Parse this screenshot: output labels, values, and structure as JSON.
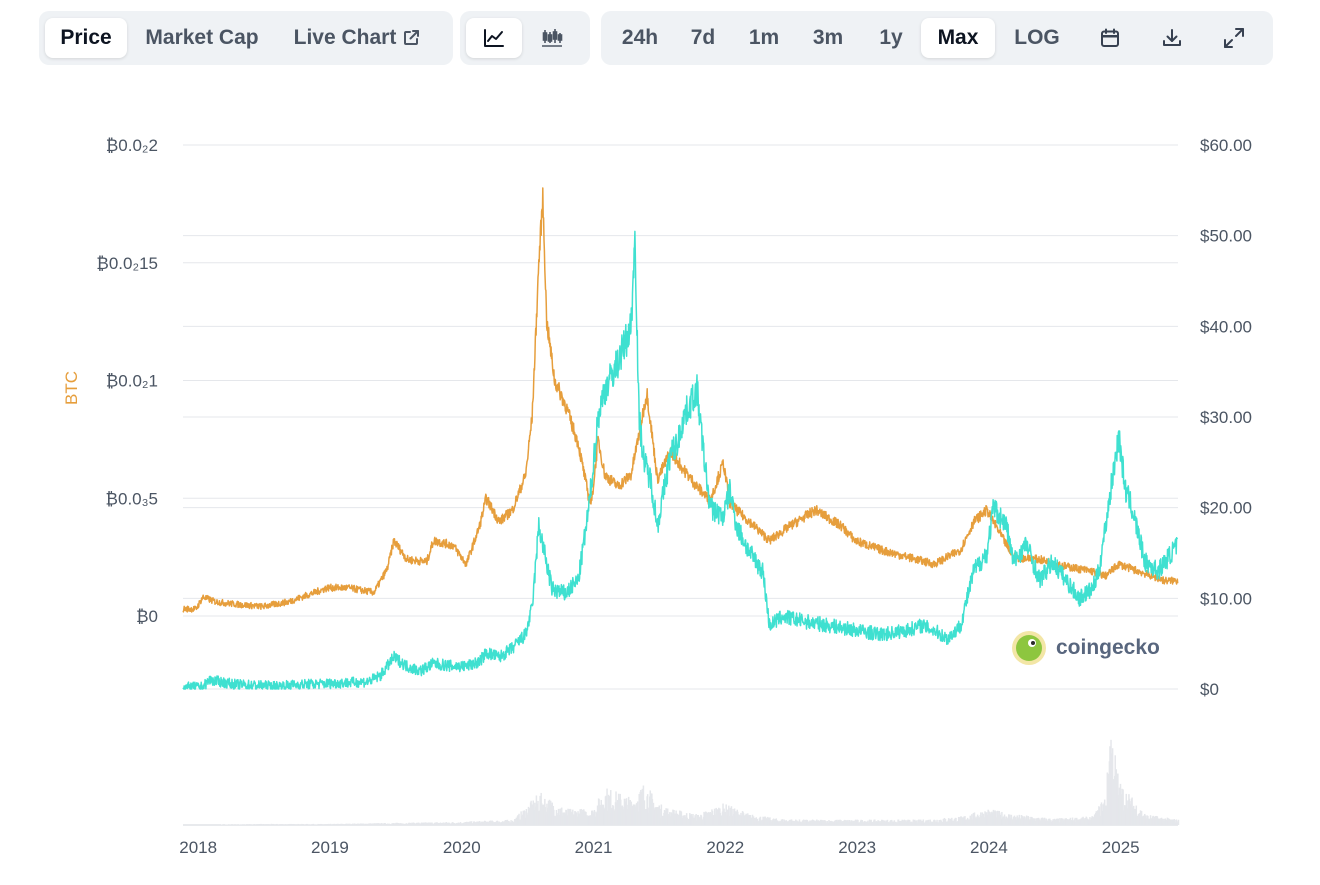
{
  "tabs": {
    "price": "Price",
    "market_cap": "Market Cap",
    "live_chart": "Live Chart"
  },
  "chart_type_buttons": [
    "line-chart-icon",
    "candlestick-chart-icon"
  ],
  "ranges": [
    "24h",
    "7d",
    "1m",
    "3m",
    "1y",
    "Max",
    "LOG"
  ],
  "active_range": "Max",
  "tool_icons": [
    "calendar-icon",
    "download-icon",
    "expand-icon"
  ],
  "watermark": "coingecko",
  "colors": {
    "btc_series": "#e69e3c",
    "usd_series": "#3fe0d0",
    "volume": "#e5e7eb",
    "grid": "#e5e7eb",
    "active_bg": "#ffffff",
    "toolbar_bg": "#eff2f5"
  },
  "chart_data": {
    "type": "line",
    "left_axis": {
      "title": "BTC",
      "ticks": [
        {
          "label": "₿0",
          "value": 0
        },
        {
          "label": "₿0.0₃5",
          "value": 0.0005
        },
        {
          "label": "₿0.0₂1",
          "value": 0.001
        },
        {
          "label": "₿0.0₂15",
          "value": 0.0015
        },
        {
          "label": "₿0.0₂2",
          "value": 0.002
        }
      ],
      "range": [
        0,
        0.002
      ]
    },
    "right_axis": {
      "ticks": [
        "$0",
        "$10.00",
        "$20.00",
        "$30.00",
        "$40.00",
        "$50.00",
        "$60.00"
      ],
      "range": [
        0,
        60
      ]
    },
    "x_axis": {
      "ticks": [
        "2018",
        "2019",
        "2020",
        "2021",
        "2022",
        "2023",
        "2024",
        "2025"
      ],
      "range": [
        2017.9,
        2025.45
      ]
    },
    "series": [
      {
        "axis": "left",
        "x": [
          2017.9,
          2018.0,
          2018.05,
          2018.15,
          2018.3,
          2018.5,
          2018.7,
          2018.85,
          2019.0,
          2019.15,
          2019.35,
          2019.45,
          2019.5,
          2019.6,
          2019.75,
          2019.8,
          2019.95,
          2020.05,
          2020.15,
          2020.2,
          2020.3,
          2020.4,
          2020.5,
          2020.55,
          2020.6,
          2020.63,
          2020.66,
          2020.72,
          2020.8,
          2020.9,
          2020.98,
          2021.0,
          2021.05,
          2021.1,
          2021.2,
          2021.3,
          2021.38,
          2021.42,
          2021.5,
          2021.6,
          2021.7,
          2021.8,
          2021.9,
          2022.0,
          2022.05,
          2022.1,
          2022.2,
          2022.35,
          2022.5,
          2022.7,
          2022.9,
          2023.0,
          2023.2,
          2023.4,
          2023.6,
          2023.8,
          2023.9,
          2024.0,
          2024.1,
          2024.2,
          2024.4,
          2024.6,
          2024.8,
          2024.9,
          2025.0,
          2025.2,
          2025.35,
          2025.45
        ],
        "y": [
          3e-05,
          3e-05,
          8e-05,
          6e-05,
          5e-05,
          4e-05,
          6e-05,
          9e-05,
          0.00012,
          0.00012,
          0.0001,
          0.0002,
          0.00032,
          0.00024,
          0.00023,
          0.00032,
          0.0003,
          0.00022,
          0.00038,
          0.0005,
          0.0004,
          0.00045,
          0.0006,
          0.00085,
          0.0015,
          0.00177,
          0.00125,
          0.001,
          0.0009,
          0.00073,
          0.0005,
          0.00048,
          0.00075,
          0.0006,
          0.00055,
          0.0006,
          0.00083,
          0.00095,
          0.00058,
          0.0007,
          0.00062,
          0.00055,
          0.00049,
          0.00065,
          0.00048,
          0.00045,
          0.0004,
          0.00032,
          0.00038,
          0.00045,
          0.00038,
          0.00032,
          0.00028,
          0.00025,
          0.00022,
          0.00028,
          0.0004,
          0.00045,
          0.00035,
          0.00025,
          0.00024,
          0.00021,
          0.00019,
          0.00017,
          0.00022,
          0.00018,
          0.00015,
          0.00015
        ]
      },
      {
        "axis": "right",
        "x": [
          2017.9,
          2018.05,
          2018.1,
          2018.3,
          2018.6,
          2018.8,
          2019.0,
          2019.3,
          2019.4,
          2019.5,
          2019.6,
          2019.7,
          2019.8,
          2019.95,
          2020.05,
          2020.15,
          2020.2,
          2020.3,
          2020.4,
          2020.5,
          2020.55,
          2020.6,
          2020.7,
          2020.8,
          2020.9,
          2020.98,
          2021.05,
          2021.1,
          2021.2,
          2021.3,
          2021.33,
          2021.36,
          2021.4,
          2021.45,
          2021.5,
          2021.6,
          2021.65,
          2021.7,
          2021.8,
          2021.85,
          2021.9,
          2022.0,
          2022.05,
          2022.1,
          2022.2,
          2022.3,
          2022.35,
          2022.45,
          2022.6,
          2022.8,
          2023.0,
          2023.2,
          2023.4,
          2023.5,
          2023.6,
          2023.7,
          2023.8,
          2023.9,
          2024.0,
          2024.05,
          2024.15,
          2024.2,
          2024.3,
          2024.4,
          2024.5,
          2024.6,
          2024.7,
          2024.8,
          2024.85,
          2024.9,
          2025.0,
          2025.05,
          2025.1,
          2025.2,
          2025.3,
          2025.4,
          2025.45
        ],
        "y": [
          0.2,
          0.2,
          1.0,
          0.5,
          0.3,
          0.5,
          0.6,
          0.8,
          1.5,
          3.5,
          2.5,
          2.0,
          2.8,
          2.5,
          2.5,
          3.0,
          4.0,
          3.5,
          4.5,
          6.0,
          9.0,
          18.0,
          11.0,
          10.5,
          12.0,
          20.0,
          30.0,
          33.0,
          36.0,
          40.0,
          50.0,
          30.0,
          25.0,
          23.0,
          18.0,
          26.0,
          27.0,
          30.0,
          33.0,
          26.0,
          20.0,
          19.0,
          22.0,
          18.0,
          15.0,
          13.0,
          7.0,
          8.0,
          7.5,
          7.0,
          6.5,
          6.0,
          6.5,
          7.0,
          6.5,
          5.5,
          7.0,
          13.0,
          15.0,
          20.0,
          18.0,
          14.0,
          16.0,
          12.0,
          14.0,
          12.0,
          10.0,
          11.0,
          13.0,
          18.0,
          28.0,
          22.0,
          20.0,
          14.0,
          13.0,
          15.0,
          16.0
        ]
      }
    ],
    "volume": {
      "x": [
        2017.9,
        2018.5,
        2019.0,
        2019.5,
        2020.0,
        2020.4,
        2020.6,
        2020.8,
        2021.0,
        2021.1,
        2021.2,
        2021.3,
        2021.4,
        2021.5,
        2021.6,
        2021.8,
        2022.0,
        2022.2,
        2022.4,
        2022.6,
        2023.0,
        2023.5,
        2023.8,
        2024.0,
        2024.2,
        2024.5,
        2024.8,
        2024.9,
        2024.93,
        2025.0,
        2025.2,
        2025.45
      ],
      "y": [
        0.0,
        0.01,
        0.01,
        0.02,
        0.03,
        0.05,
        0.3,
        0.15,
        0.15,
        0.35,
        0.3,
        0.25,
        0.4,
        0.2,
        0.15,
        0.1,
        0.2,
        0.1,
        0.06,
        0.05,
        0.05,
        0.05,
        0.08,
        0.15,
        0.1,
        0.06,
        0.08,
        0.3,
        1.0,
        0.4,
        0.1,
        0.05
      ]
    }
  }
}
